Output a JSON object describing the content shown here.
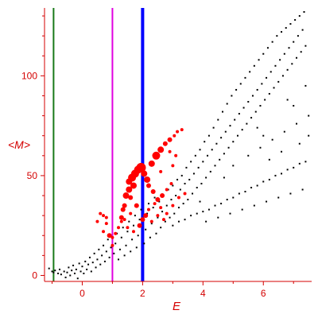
{
  "chart_data": {
    "type": "scatter",
    "title": "",
    "xlabel": "E",
    "ylabel": "<M>",
    "xlim": [
      -1.25,
      7.6
    ],
    "ylim": [
      -3,
      134
    ],
    "x_ticks": [
      0,
      2,
      4,
      6
    ],
    "y_ticks": [
      0,
      50,
      100
    ],
    "x_tick_labels": [
      "0",
      "2",
      "4",
      "6"
    ],
    "y_tick_labels": [
      "0",
      "50",
      "100"
    ],
    "grid": false,
    "legend": "none",
    "colors": {
      "axes": "#d40000",
      "black_points": "#000000",
      "red_points": "#ff0000",
      "green_line": "#1a7a1a",
      "magenta_line": "#e000e0",
      "blue_line": "#0000ff"
    },
    "vertical_lines": [
      {
        "x": -0.95,
        "color": "green"
      },
      {
        "x": 1.0,
        "color": "magenta"
      },
      {
        "x": 2.0,
        "color": "blue"
      }
    ],
    "series": [
      {
        "color": "black",
        "points": [
          [
            -1.1,
            3.5
          ],
          [
            -1.0,
            2.0
          ],
          [
            -0.95,
            1.5
          ],
          [
            -0.9,
            2.5
          ],
          [
            -0.8,
            1.0
          ],
          [
            -0.75,
            3.0
          ],
          [
            -0.7,
            0.5
          ],
          [
            -0.6,
            2.0
          ],
          [
            -0.55,
            -1.0
          ],
          [
            -0.5,
            1.5
          ],
          [
            -0.45,
            4.0
          ],
          [
            -0.4,
            0.0
          ],
          [
            -0.35,
            2.5
          ],
          [
            -0.3,
            5.0
          ],
          [
            -0.25,
            1.0
          ],
          [
            -0.2,
            3.0
          ],
          [
            -0.15,
            -1.5
          ],
          [
            -0.1,
            6.0
          ],
          [
            -0.05,
            2.0
          ],
          [
            0.0,
            4.5
          ],
          [
            0.05,
            1.0
          ],
          [
            0.1,
            7.0
          ],
          [
            0.15,
            3.0
          ],
          [
            0.2,
            5.5
          ],
          [
            0.25,
            9.0
          ],
          [
            0.3,
            2.0
          ],
          [
            0.35,
            6.5
          ],
          [
            0.4,
            11.0
          ],
          [
            0.45,
            4.0
          ],
          [
            0.5,
            8.0
          ],
          [
            0.55,
            13.0
          ],
          [
            0.6,
            5.5
          ],
          [
            0.65,
            10.0
          ],
          [
            0.7,
            15.0
          ],
          [
            0.75,
            7.0
          ],
          [
            0.8,
            12.0
          ],
          [
            0.85,
            18.0
          ],
          [
            0.9,
            9.0
          ],
          [
            0.95,
            14.0
          ],
          [
            1.05,
            11.0
          ],
          [
            1.1,
            16.0
          ],
          [
            1.15,
            21.0
          ],
          [
            1.2,
            8.0
          ],
          [
            1.25,
            13.0
          ],
          [
            1.3,
            19.0
          ],
          [
            1.35,
            24.0
          ],
          [
            1.4,
            10.0
          ],
          [
            1.45,
            15.0
          ],
          [
            1.5,
            22.0
          ],
          [
            1.55,
            27.0
          ],
          [
            1.6,
            12.0
          ],
          [
            1.65,
            18.0
          ],
          [
            1.7,
            25.0
          ],
          [
            1.75,
            30.0
          ],
          [
            1.8,
            14.0
          ],
          [
            1.85,
            20.0
          ],
          [
            1.9,
            28.0
          ],
          [
            1.95,
            33.0
          ],
          [
            2.05,
            16.0
          ],
          [
            2.1,
            23.0
          ],
          [
            2.15,
            31.0
          ],
          [
            2.2,
            36.0
          ],
          [
            2.25,
            19.0
          ],
          [
            2.3,
            26.0
          ],
          [
            2.35,
            34.0
          ],
          [
            2.4,
            39.0
          ],
          [
            2.45,
            21.0
          ],
          [
            2.5,
            29.0
          ],
          [
            2.55,
            37.0
          ],
          [
            2.6,
            24.0
          ],
          [
            2.65,
            32.0
          ],
          [
            2.7,
            40.0
          ],
          [
            2.75,
            27.0
          ],
          [
            2.8,
            35.0
          ],
          [
            2.85,
            43.0
          ],
          [
            2.9,
            29.0
          ],
          [
            2.95,
            38.0
          ],
          [
            3.0,
            45.0
          ],
          [
            3.05,
            31.0
          ],
          [
            3.1,
            40.0
          ],
          [
            3.15,
            48.0
          ],
          [
            3.2,
            34.0
          ],
          [
            3.25,
            43.0
          ],
          [
            3.3,
            50.0
          ],
          [
            3.35,
            36.0
          ],
          [
            3.4,
            46.0
          ],
          [
            3.45,
            54.0
          ],
          [
            3.5,
            38.0
          ],
          [
            3.55,
            48.0
          ],
          [
            3.6,
            57.0
          ],
          [
            3.65,
            41.0
          ],
          [
            3.7,
            51.0
          ],
          [
            3.75,
            60.0
          ],
          [
            3.8,
            44.0
          ],
          [
            3.85,
            54.0
          ],
          [
            3.9,
            63.0
          ],
          [
            3.95,
            46.0
          ],
          [
            4.0,
            57.0
          ],
          [
            4.05,
            67.0
          ],
          [
            4.1,
            49.0
          ],
          [
            4.15,
            60.0
          ],
          [
            4.2,
            70.0
          ],
          [
            4.25,
            52.0
          ],
          [
            4.3,
            63.0
          ],
          [
            4.35,
            74.0
          ],
          [
            4.4,
            55.0
          ],
          [
            4.45,
            66.0
          ],
          [
            4.5,
            78.0
          ],
          [
            4.55,
            58.0
          ],
          [
            4.6,
            69.0
          ],
          [
            4.65,
            82.0
          ],
          [
            4.7,
            61.0
          ],
          [
            4.75,
            72.0
          ],
          [
            4.8,
            86.0
          ],
          [
            4.85,
            64.0
          ],
          [
            4.9,
            75.0
          ],
          [
            4.95,
            90.0
          ],
          [
            5.0,
            67.0
          ],
          [
            5.05,
            78.0
          ],
          [
            5.1,
            93.0
          ],
          [
            5.15,
            70.0
          ],
          [
            5.2,
            81.0
          ],
          [
            5.25,
            96.0
          ],
          [
            5.3,
            73.0
          ],
          [
            5.35,
            84.0
          ],
          [
            5.4,
            99.0
          ],
          [
            5.45,
            76.0
          ],
          [
            5.5,
            87.0
          ],
          [
            5.55,
            102.0
          ],
          [
            5.6,
            79.0
          ],
          [
            5.65,
            90.0
          ],
          [
            5.7,
            105.0
          ],
          [
            5.75,
            82.0
          ],
          [
            5.8,
            93.0
          ],
          [
            5.85,
            108.0
          ],
          [
            5.9,
            85.0
          ],
          [
            5.95,
            96.0
          ],
          [
            6.0,
            111.0
          ],
          [
            6.05,
            88.0
          ],
          [
            6.1,
            99.0
          ],
          [
            6.15,
            114.0
          ],
          [
            6.2,
            91.0
          ],
          [
            6.25,
            102.0
          ],
          [
            6.3,
            117.0
          ],
          [
            6.35,
            94.0
          ],
          [
            6.4,
            105.0
          ],
          [
            6.45,
            120.0
          ],
          [
            6.5,
            97.0
          ],
          [
            6.55,
            108.0
          ],
          [
            6.6,
            122.0
          ],
          [
            6.65,
            100.0
          ],
          [
            6.7,
            111.0
          ],
          [
            6.75,
            124.0
          ],
          [
            6.8,
            103.0
          ],
          [
            6.85,
            114.0
          ],
          [
            6.9,
            126.0
          ],
          [
            6.95,
            106.0
          ],
          [
            7.0,
            117.0
          ],
          [
            7.05,
            128.0
          ],
          [
            7.1,
            109.0
          ],
          [
            7.15,
            120.0
          ],
          [
            7.2,
            130.0
          ],
          [
            7.25,
            112.0
          ],
          [
            7.3,
            123.0
          ],
          [
            7.35,
            132.0
          ],
          [
            7.4,
            115.0
          ],
          [
            3.0,
            25.0
          ],
          [
            3.2,
            27.0
          ],
          [
            3.4,
            28.0
          ],
          [
            3.6,
            30.0
          ],
          [
            3.8,
            31.0
          ],
          [
            4.0,
            32.0
          ],
          [
            4.2,
            33.0
          ],
          [
            4.4,
            35.0
          ],
          [
            4.6,
            36.0
          ],
          [
            4.8,
            38.0
          ],
          [
            5.0,
            39.0
          ],
          [
            5.2,
            41.0
          ],
          [
            5.4,
            42.0
          ],
          [
            5.6,
            44.0
          ],
          [
            5.8,
            45.0
          ],
          [
            6.0,
            47.0
          ],
          [
            6.2,
            48.0
          ],
          [
            6.4,
            50.0
          ],
          [
            6.6,
            51.0
          ],
          [
            6.8,
            53.0
          ],
          [
            7.0,
            54.0
          ],
          [
            7.2,
            56.0
          ],
          [
            7.4,
            57.0
          ],
          [
            4.1,
            27.0
          ],
          [
            4.5,
            29.0
          ],
          [
            4.9,
            31.0
          ],
          [
            5.3,
            33.0
          ],
          [
            5.7,
            35.0
          ],
          [
            6.1,
            37.0
          ],
          [
            6.5,
            39.0
          ],
          [
            6.9,
            41.0
          ],
          [
            7.3,
            43.0
          ],
          [
            5.5,
            60.0
          ],
          [
            5.9,
            64.0
          ],
          [
            6.3,
            68.0
          ],
          [
            6.7,
            72.0
          ],
          [
            7.1,
            76.0
          ],
          [
            7.5,
            80.0
          ],
          [
            5.0,
            55.0
          ],
          [
            6.0,
            70.0
          ],
          [
            7.0,
            85.0
          ],
          [
            6.2,
            58.0
          ],
          [
            6.6,
            62.0
          ],
          [
            7.2,
            66.0
          ],
          [
            7.5,
            70.0
          ],
          [
            6.8,
            88.0
          ],
          [
            7.4,
            95.0
          ],
          [
            5.8,
            74.0
          ],
          [
            4.7,
            49.0
          ],
          [
            3.9,
            37.0
          ]
        ]
      },
      {
        "color": "red",
        "points": [
          [
            0.5,
            27.0,
            2
          ],
          [
            0.6,
            31.0,
            2
          ],
          [
            0.7,
            30.0,
            2
          ],
          [
            0.8,
            29.0,
            2
          ],
          [
            0.7,
            22.0,
            2
          ],
          [
            0.8,
            26.0,
            2
          ],
          [
            0.9,
            20.0,
            3
          ],
          [
            1.0,
            15.0,
            2
          ],
          [
            1.0,
            19.0,
            2
          ],
          [
            1.1,
            21.0,
            2
          ],
          [
            1.2,
            24.0,
            2
          ],
          [
            1.3,
            29.0,
            3
          ],
          [
            1.35,
            33.0,
            3
          ],
          [
            1.4,
            35.0,
            3
          ],
          [
            1.45,
            40.0,
            4
          ],
          [
            1.55,
            43.0,
            4
          ],
          [
            1.6,
            39.0,
            3
          ],
          [
            1.7,
            45.0,
            4
          ],
          [
            1.55,
            47.0,
            4
          ],
          [
            1.65,
            49.0,
            5
          ],
          [
            1.75,
            51.0,
            5
          ],
          [
            1.85,
            53.0,
            5
          ],
          [
            1.95,
            54.0,
            6
          ],
          [
            2.05,
            51.0,
            4
          ],
          [
            2.15,
            48.0,
            4
          ],
          [
            2.3,
            56.0,
            4
          ],
          [
            2.45,
            60.0,
            5
          ],
          [
            2.6,
            63.0,
            4
          ],
          [
            2.75,
            66.0,
            3
          ],
          [
            2.9,
            68.0,
            3
          ],
          [
            3.05,
            70.0,
            2
          ],
          [
            3.15,
            72.0,
            2
          ],
          [
            3.3,
            73.0,
            2
          ],
          [
            2.2,
            45.0,
            3
          ],
          [
            2.35,
            42.0,
            3
          ],
          [
            2.5,
            38.0,
            3
          ],
          [
            2.65,
            40.0,
            3
          ],
          [
            2.8,
            43.0,
            2
          ],
          [
            2.95,
            46.0,
            2
          ],
          [
            1.3,
            27.0,
            2
          ],
          [
            1.5,
            24.0,
            2
          ],
          [
            1.7,
            22.0,
            2
          ],
          [
            1.9,
            25.0,
            3
          ],
          [
            2.0,
            28.0,
            3
          ],
          [
            2.1,
            30.0,
            3
          ],
          [
            2.2,
            33.0,
            2
          ],
          [
            2.4,
            36.0,
            2
          ],
          [
            2.6,
            34.0,
            2
          ],
          [
            2.8,
            31.0,
            2
          ],
          [
            3.0,
            35.0,
            2
          ],
          [
            3.2,
            39.0,
            2
          ],
          [
            3.4,
            41.0,
            2
          ],
          [
            2.3,
            27.0,
            2
          ],
          [
            2.5,
            30.0,
            2
          ],
          [
            2.7,
            28.0,
            2
          ],
          [
            1.8,
            35.0,
            3
          ],
          [
            1.6,
            31.0,
            2
          ],
          [
            1.4,
            28.0,
            2
          ],
          [
            2.9,
            62.0,
            2
          ],
          [
            3.1,
            60.0,
            2
          ],
          [
            2.6,
            52.0,
            2
          ],
          [
            3.0,
            55.0,
            2
          ]
        ]
      }
    ]
  }
}
